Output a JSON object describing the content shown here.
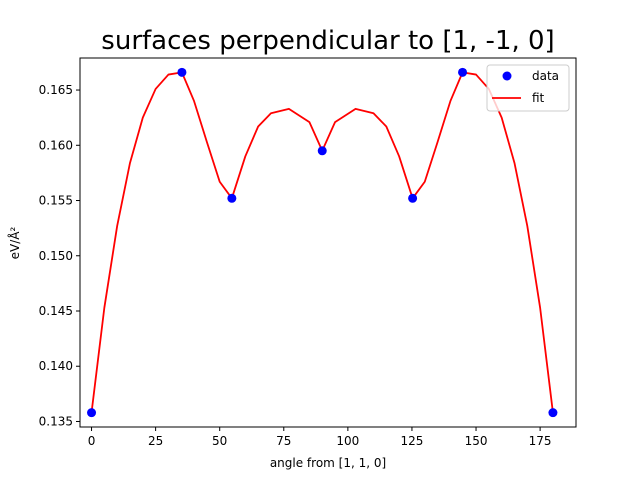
{
  "chart_data": {
    "type": "line",
    "title": "surfaces perpendicular to [1, -1, 0]",
    "xlabel": "angle from [1, 1, 0]",
    "ylabel": "eV/Å²",
    "xlim": [
      -4.5,
      189
    ],
    "ylim": [
      0.1345,
      0.1679
    ],
    "xticks": [
      0,
      25,
      50,
      75,
      100,
      125,
      150,
      175
    ],
    "yticks": [
      0.135,
      0.14,
      0.145,
      0.15,
      0.155,
      0.16,
      0.165
    ],
    "ytick_labels": [
      "0.135",
      "0.140",
      "0.145",
      "0.150",
      "0.155",
      "0.160",
      "0.165"
    ],
    "legend_position": "upper right",
    "legend": [
      "data",
      "fit"
    ],
    "series": [
      {
        "name": "data",
        "kind": "scatter",
        "color": "#0000ff",
        "x": [
          0,
          35.26,
          54.74,
          90,
          125.26,
          144.74,
          180
        ],
        "y": [
          0.1358,
          0.1666,
          0.1552,
          0.1595,
          0.1552,
          0.1666,
          0.1358
        ]
      },
      {
        "name": "fit",
        "kind": "line",
        "color": "#ff0000",
        "x": [
          0,
          5,
          10,
          15,
          20,
          25,
          30,
          35.26,
          40,
          45,
          50,
          54.74,
          60,
          65,
          70,
          77,
          85,
          90,
          95,
          103,
          110,
          115,
          120,
          125.26,
          130,
          135,
          140,
          144.74,
          150,
          155,
          160,
          165,
          170,
          175,
          180
        ],
        "y": [
          0.1358,
          0.1453,
          0.1527,
          0.1584,
          0.1625,
          0.1651,
          0.1664,
          0.1666,
          0.164,
          0.1603,
          0.1567,
          0.1552,
          0.159,
          0.1617,
          0.1629,
          0.1633,
          0.1621,
          0.1595,
          0.1621,
          0.1633,
          0.1629,
          0.1617,
          0.159,
          0.1552,
          0.1567,
          0.1603,
          0.164,
          0.1666,
          0.1664,
          0.1651,
          0.1625,
          0.1584,
          0.1527,
          0.1453,
          0.1358
        ]
      }
    ]
  }
}
